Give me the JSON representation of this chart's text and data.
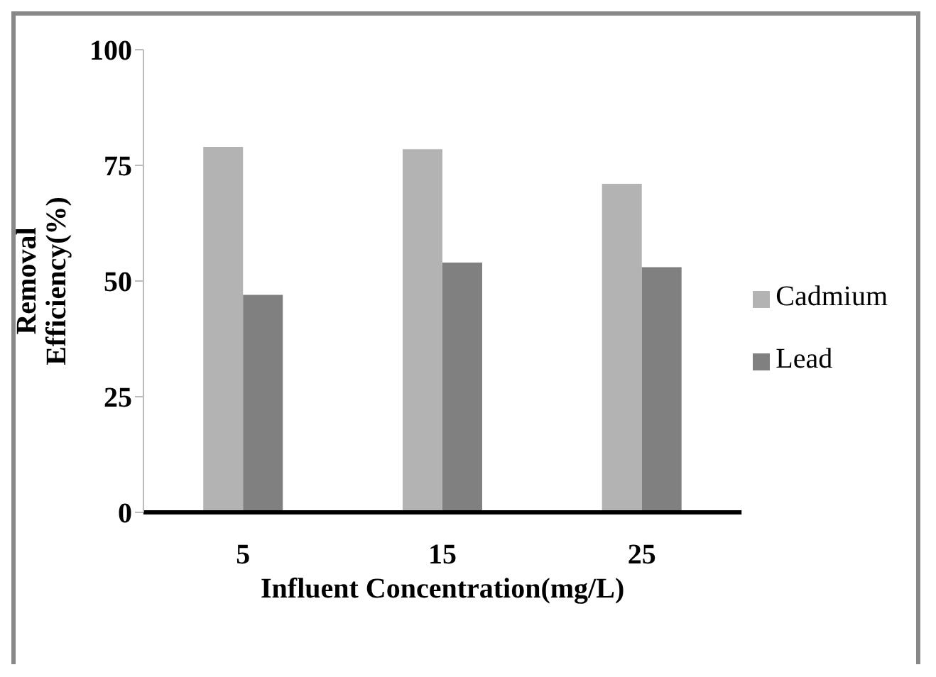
{
  "chart_data": {
    "type": "bar",
    "xlabel": "Influent Concentration(mg/L)",
    "ylabel": "Removal Efficiency(%)",
    "categories": [
      "5",
      "15",
      "25"
    ],
    "series": [
      {
        "name": "Cadmium",
        "color": "#b3b3b3",
        "values": [
          79,
          78.5,
          71
        ]
      },
      {
        "name": "Lead",
        "color": "#808080",
        "values": [
          47,
          54,
          53
        ]
      }
    ],
    "ylim": [
      0,
      100
    ],
    "yticks": [
      0,
      25,
      50,
      75,
      100
    ],
    "grid": false,
    "legend": "right"
  }
}
